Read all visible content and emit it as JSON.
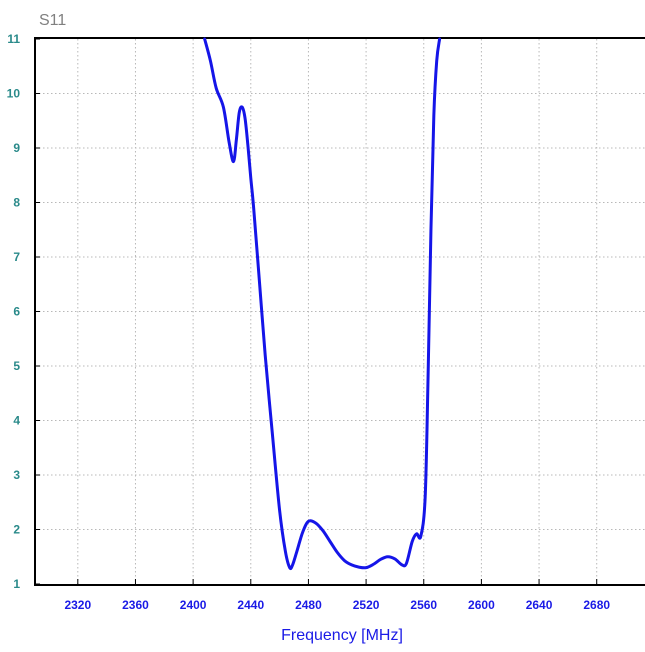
{
  "chart_data": {
    "type": "line",
    "title": "S11",
    "xlabel": "Frequency [MHz]",
    "ylabel": "",
    "xlim": [
      2300,
      2720
    ],
    "ylim": [
      1,
      11
    ],
    "x_ticks": [
      2320,
      2360,
      2400,
      2440,
      2480,
      2520,
      2560,
      2600,
      2640,
      2680
    ],
    "y_ticks": [
      1,
      2,
      3,
      4,
      5,
      6,
      7,
      8,
      9,
      10,
      11
    ],
    "grid": true,
    "series": [
      {
        "color": "#1515e8",
        "x": [
          2408,
          2412,
          2416,
          2421,
          2425,
          2428,
          2430,
          2432,
          2434,
          2436,
          2438,
          2440,
          2442,
          2446,
          2450,
          2455,
          2460,
          2464,
          2467,
          2469,
          2472,
          2476,
          2480,
          2485,
          2490,
          2495,
          2500,
          2505,
          2510,
          2515,
          2520,
          2525,
          2530,
          2535,
          2540,
          2545,
          2548,
          2552,
          2555,
          2558,
          2561,
          2563,
          2565,
          2567,
          2569,
          2571
        ],
        "y": [
          11.0,
          10.6,
          10.1,
          9.75,
          9.1,
          8.75,
          9.15,
          9.65,
          9.75,
          9.55,
          9.05,
          8.45,
          7.9,
          6.55,
          5.2,
          3.75,
          2.35,
          1.6,
          1.3,
          1.35,
          1.6,
          1.95,
          2.15,
          2.12,
          1.98,
          1.78,
          1.58,
          1.43,
          1.35,
          1.31,
          1.3,
          1.36,
          1.45,
          1.5,
          1.46,
          1.35,
          1.38,
          1.78,
          1.92,
          1.88,
          2.6,
          4.8,
          7.5,
          9.6,
          10.6,
          11.0
        ]
      }
    ]
  }
}
